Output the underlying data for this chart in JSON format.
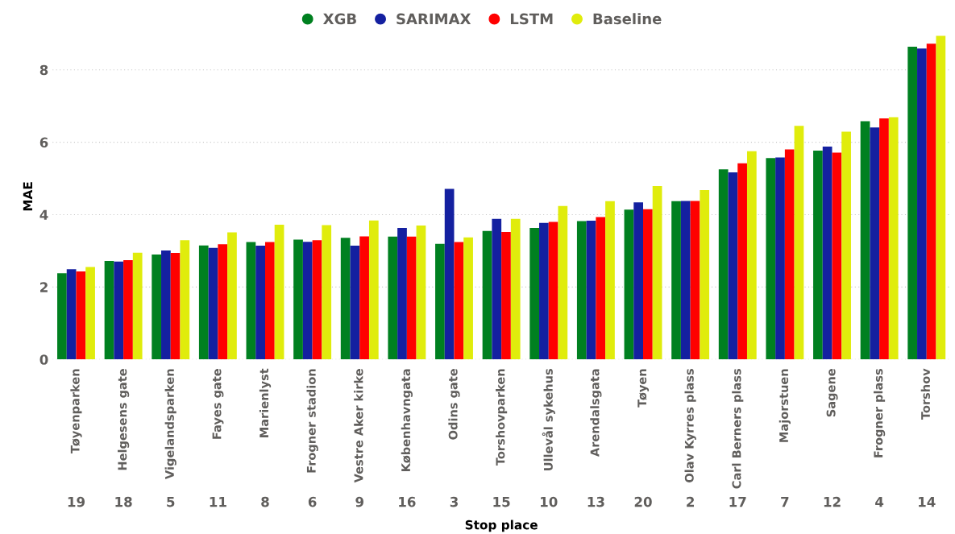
{
  "chart_data": {
    "type": "bar",
    "xlabel": "Stop place",
    "ylabel": "MAE",
    "categories": [
      "Tøyenparken",
      "Helgesens gate",
      "Vigelandsparken",
      "Fayes gate",
      "Marienlyst",
      "Frogner stadion",
      "Vestre Aker kirke",
      "Københavngata",
      "Odins gate",
      "Torshovparken",
      "Ullevål sykehus",
      "Arendalsgata",
      "Tøyen",
      "Olav Kyrres plass",
      "Carl Berners plass",
      "Majorstuen",
      "Sagene",
      "Frogner plass",
      "Torshov"
    ],
    "series": [
      {
        "name": "XGB",
        "color": "#008020",
        "values": [
          2.38,
          2.72,
          2.9,
          3.15,
          3.24,
          3.31,
          3.36,
          3.39,
          3.19,
          3.55,
          3.63,
          3.82,
          4.14,
          4.37,
          5.25,
          5.56,
          5.77,
          6.58,
          8.64
        ]
      },
      {
        "name": "SARIMAX",
        "color": "#1420a0",
        "values": [
          2.49,
          2.7,
          3.01,
          3.08,
          3.14,
          3.25,
          3.14,
          3.63,
          4.71,
          3.88,
          3.77,
          3.83,
          4.34,
          4.38,
          5.17,
          5.58,
          5.88,
          6.41,
          8.59
        ]
      },
      {
        "name": "LSTM",
        "color": "#ff0000",
        "values": [
          2.43,
          2.74,
          2.94,
          3.18,
          3.24,
          3.29,
          3.4,
          3.39,
          3.24,
          3.52,
          3.8,
          3.93,
          4.15,
          4.38,
          5.42,
          5.8,
          5.71,
          6.66,
          8.72
        ]
      },
      {
        "name": "Baseline",
        "color": "#e0ec0c",
        "values": [
          2.55,
          2.95,
          3.29,
          3.51,
          3.72,
          3.71,
          3.84,
          3.7,
          3.37,
          3.88,
          4.24,
          4.37,
          4.79,
          4.68,
          5.75,
          6.45,
          6.29,
          6.69,
          8.94
        ]
      }
    ],
    "ylim": [
      0,
      9
    ],
    "yticks": [
      0,
      2,
      4,
      6,
      8
    ],
    "grid": "y",
    "legend": "top",
    "annotations": [
      "19",
      "18",
      "5",
      "11",
      "8",
      "6",
      "9",
      "16",
      "3",
      "15",
      "10",
      "13",
      "20",
      "2",
      "17",
      "7",
      "12",
      "4",
      "14"
    ]
  }
}
